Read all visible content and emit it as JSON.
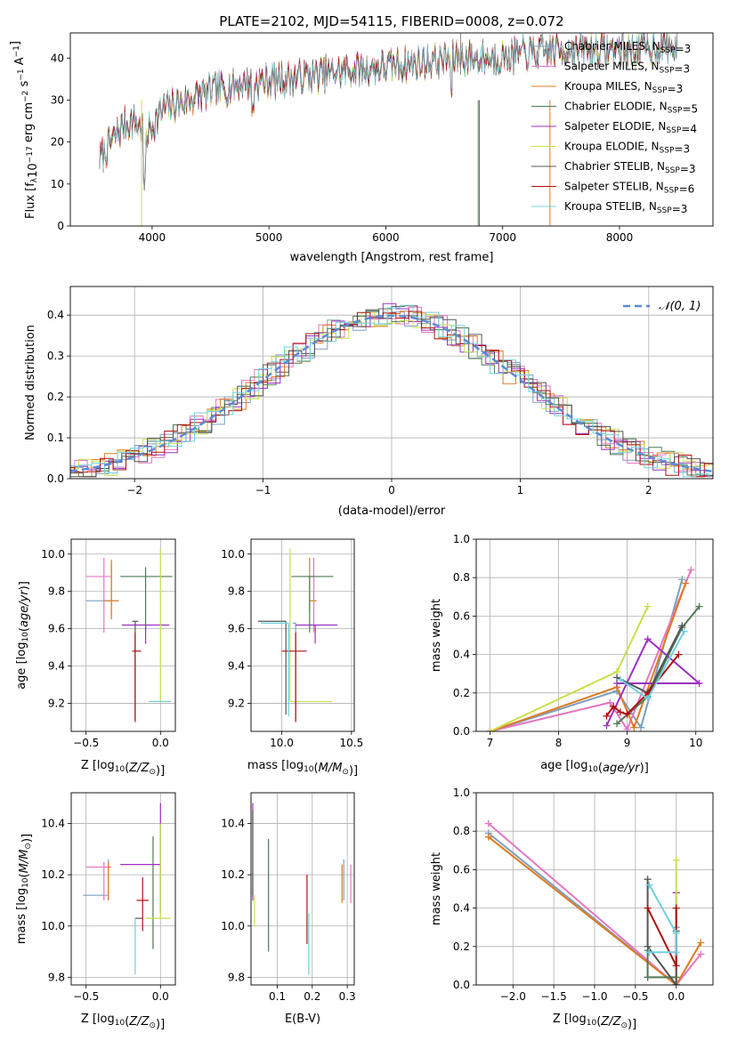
{
  "figure": {
    "title": "PLATE=2102, MJD=54115, FIBERID=0008, z=0.072"
  },
  "models": [
    {
      "name": "Chabrier MILES, N_SSP=3",
      "color": "#7b9fbf"
    },
    {
      "name": "Salpeter MILES, N_SSP=3",
      "color": "#e377c2"
    },
    {
      "name": "Kroupa MILES, N_SSP=3",
      "color": "#e07b20"
    },
    {
      "name": "Chabrier ELODIE, N_SSP=5",
      "color": "#4f7a55"
    },
    {
      "name": "Salpeter ELODIE, N_SSP=4",
      "color": "#9b30c0"
    },
    {
      "name": "Kroupa ELODIE, N_SSP=3",
      "color": "#c8e04a"
    },
    {
      "name": "Chabrier STELIB, N_SSP=3",
      "color": "#555555"
    },
    {
      "name": "Salpeter STELIB, N_SSP=6",
      "color": "#b01010"
    },
    {
      "name": "Kroupa STELIB, N_SSP=3",
      "color": "#6fd0e0"
    }
  ],
  "chart_data": [
    {
      "id": "spectrum",
      "type": "line",
      "xlabel": "wavelength [Angstrom, rest frame]",
      "ylabel": "Flux [f_λ 10^-17 erg cm^-2 s^-1 A^-1]",
      "xlim": [
        3300,
        8800
      ],
      "ylim": [
        0,
        46
      ],
      "xticks": [
        4000,
        5000,
        6000,
        7000,
        8000
      ],
      "yticks": [
        0,
        10,
        20,
        30,
        40
      ],
      "spectrum_anchors": [
        [
          3550,
          16
        ],
        [
          3650,
          20
        ],
        [
          3750,
          24
        ],
        [
          3850,
          25
        ],
        [
          3950,
          22
        ],
        [
          4100,
          28
        ],
        [
          4300,
          30
        ],
        [
          4500,
          32
        ],
        [
          4800,
          34
        ],
        [
          5100,
          35
        ],
        [
          5400,
          36
        ],
        [
          5700,
          37
        ],
        [
          6000,
          38
        ],
        [
          6300,
          39
        ],
        [
          6600,
          40
        ],
        [
          6900,
          40
        ],
        [
          7200,
          41
        ],
        [
          7500,
          42
        ],
        [
          7800,
          42
        ],
        [
          8100,
          42
        ],
        [
          8400,
          43
        ],
        [
          8500,
          42
        ]
      ],
      "legend_loc": "upper right"
    },
    {
      "id": "residuals",
      "type": "histogram",
      "xlabel": "(data-model)/error",
      "ylabel": "Normed distribution",
      "xlim": [
        -2.5,
        2.5
      ],
      "ylim": [
        0,
        0.47
      ],
      "xticks": [
        -2,
        -1,
        0,
        1,
        2
      ],
      "yticks": [
        0.0,
        0.1,
        0.2,
        0.3,
        0.4
      ],
      "grid": true,
      "legend": "𝒩(0, 1)",
      "reference_curve": "normal(0,1)"
    },
    {
      "id": "age-vs-Z",
      "type": "errorbar",
      "xlabel": "Z [log10(Z/Z⊙)]",
      "ylabel": "age [log10(age/yr)]",
      "xlim": [
        -0.6,
        0.1
      ],
      "ylim": [
        9.05,
        10.08
      ],
      "xticks": [
        -0.5,
        0.0
      ],
      "yticks": [
        9.2,
        9.4,
        9.6,
        9.8,
        10.0
      ],
      "grid": true,
      "points": [
        {
          "model": 0,
          "x": -0.33,
          "y": 9.75,
          "xerr": [
            0.17,
            0.05
          ],
          "yerr": [
            0.08,
            0.2
          ]
        },
        {
          "model": 1,
          "x": -0.38,
          "y": 9.88,
          "xerr": [
            0.12,
            0.05
          ],
          "yerr": [
            0.3,
            0.1
          ]
        },
        {
          "model": 2,
          "x": -0.33,
          "y": 9.75,
          "xerr": [
            0.05,
            0.05
          ],
          "yerr": [
            0.1,
            0.22
          ]
        },
        {
          "model": 3,
          "x": -0.1,
          "y": 9.88,
          "xerr": [
            0.17,
            0.18
          ],
          "yerr": [
            0.3,
            0.05
          ]
        },
        {
          "model": 4,
          "x": -0.1,
          "y": 9.62,
          "xerr": [
            0.16,
            0.16
          ],
          "yerr": [
            0.1,
            0.0
          ]
        },
        {
          "model": 5,
          "x": 0.0,
          "y": 9.21,
          "xerr": [
            0.05,
            0.07
          ],
          "yerr": [
            0.0,
            0.82
          ]
        },
        {
          "model": 6,
          "x": -0.17,
          "y": 9.64,
          "xerr": [
            0.02,
            0.02
          ],
          "yerr": [
            0.53,
            0.0
          ]
        },
        {
          "model": 7,
          "x": -0.17,
          "y": 9.48,
          "xerr": [
            0.02,
            0.04
          ],
          "yerr": [
            0.38,
            0.1
          ]
        },
        {
          "model": 8,
          "x": -0.03,
          "y": 9.21,
          "xerr": [
            0.05,
            0.1
          ],
          "yerr": [
            0.0,
            0.0
          ]
        }
      ]
    },
    {
      "id": "age-vs-mass",
      "type": "errorbar",
      "xlabel": "mass [log10(M/M⊙)]",
      "ylabel": "",
      "xlim": [
        9.78,
        10.52
      ],
      "ylim": [
        9.05,
        10.08
      ],
      "xticks": [
        10.0,
        10.5
      ],
      "yticks": [
        9.2,
        9.4,
        9.6,
        9.8,
        10.0
      ],
      "grid": true,
      "points": [
        {
          "model": 0,
          "x": 10.1,
          "y": 9.63,
          "xerr": [
            0.02,
            0.0
          ],
          "yerr": [
            0.52,
            0.0
          ]
        },
        {
          "model": 1,
          "x": 10.23,
          "y": 9.88,
          "xerr": [
            0.05,
            0.0
          ],
          "yerr": [
            0.3,
            0.1
          ]
        },
        {
          "model": 2,
          "x": 10.2,
          "y": 9.75,
          "xerr": [
            0.0,
            0.05
          ],
          "yerr": [
            0.06,
            0.23
          ]
        },
        {
          "model": 3,
          "x": 10.2,
          "y": 9.88,
          "xerr": [
            0.13,
            0.17
          ],
          "yerr": [
            0.3,
            0.0
          ]
        },
        {
          "model": 4,
          "x": 10.24,
          "y": 9.62,
          "xerr": [
            0.14,
            0.16
          ],
          "yerr": [
            0.1,
            0.0
          ]
        },
        {
          "model": 5,
          "x": 10.06,
          "y": 9.21,
          "xerr": [
            0.0,
            0.3
          ],
          "yerr": [
            0.0,
            0.82
          ]
        },
        {
          "model": 6,
          "x": 10.03,
          "y": 9.64,
          "xerr": [
            0.2,
            0.0
          ],
          "yerr": [
            0.5,
            0.0
          ]
        },
        {
          "model": 7,
          "x": 10.1,
          "y": 9.48,
          "xerr": [
            0.1,
            0.08
          ],
          "yerr": [
            0.38,
            0.1
          ]
        },
        {
          "model": 8,
          "x": 10.05,
          "y": 9.63,
          "xerr": [
            0.2,
            0.0
          ],
          "yerr": [
            0.5,
            0.0
          ]
        }
      ]
    },
    {
      "id": "weight-vs-age",
      "type": "line",
      "xlabel": "age [log10(age/yr)]",
      "ylabel": "mass weight",
      "xlim": [
        6.8,
        10.25
      ],
      "ylim": [
        0,
        1
      ],
      "xticks": [
        7,
        8,
        9,
        10
      ],
      "yticks": [
        0.0,
        0.2,
        0.4,
        0.6,
        0.8,
        1.0
      ],
      "grid": true,
      "series": [
        {
          "model": 0,
          "x": [
            7.0,
            8.85,
            9.2,
            9.8
          ],
          "y": [
            0.0,
            0.21,
            0.02,
            0.79
          ]
        },
        {
          "model": 1,
          "x": [
            7.0,
            8.75,
            9.0,
            9.93
          ],
          "y": [
            0.0,
            0.15,
            0.01,
            0.84
          ]
        },
        {
          "model": 2,
          "x": [
            7.0,
            8.85,
            9.1,
            9.85
          ],
          "y": [
            0.0,
            0.23,
            0.02,
            0.77
          ]
        },
        {
          "model": 3,
          "x": [
            8.85,
            9.3,
            9.8,
            10.05
          ],
          "y": [
            0.04,
            0.18,
            0.54,
            0.65
          ]
        },
        {
          "model": 4,
          "x": [
            8.7,
            9.3,
            10.05,
            8.85
          ],
          "y": [
            0.03,
            0.48,
            0.25,
            0.25
          ]
        },
        {
          "model": 5,
          "x": [
            7.0,
            8.85,
            9.3
          ],
          "y": [
            0.0,
            0.31,
            0.65
          ]
        },
        {
          "model": 6,
          "x": [
            8.85,
            9.3,
            9.8
          ],
          "y": [
            0.28,
            0.2,
            0.55
          ]
        },
        {
          "model": 7,
          "x": [
            8.7,
            8.8,
            8.9,
            9.0,
            9.3,
            9.75
          ],
          "y": [
            0.08,
            0.13,
            0.1,
            0.09,
            0.2,
            0.4
          ]
        },
        {
          "model": 8,
          "x": [
            8.9,
            9.3,
            9.83
          ],
          "y": [
            0.27,
            0.17,
            0.52
          ]
        }
      ]
    },
    {
      "id": "mass-vs-Z",
      "type": "errorbar",
      "xlabel": "Z [log10(Z/Z⊙)]",
      "ylabel": "mass [log10(M/M⊙)]",
      "xlim": [
        -0.6,
        0.1
      ],
      "ylim": [
        9.77,
        10.52
      ],
      "xticks": [
        -0.5,
        0.0
      ],
      "yticks": [
        9.8,
        10.0,
        10.2,
        10.4
      ],
      "grid": true,
      "points": [
        {
          "model": 0,
          "x": -0.35,
          "y": 10.12,
          "xerr": [
            0.17,
            0.0
          ],
          "yerr": [
            0.02,
            0.14
          ]
        },
        {
          "model": 1,
          "x": -0.38,
          "y": 10.23,
          "xerr": [
            0.12,
            0.05
          ],
          "yerr": [
            0.13,
            0.02
          ]
        },
        {
          "model": 2,
          "x": -0.35,
          "y": 10.12,
          "xerr": [
            0.0,
            0.0
          ],
          "yerr": [
            0.02,
            0.13
          ]
        },
        {
          "model": 3,
          "x": -0.05,
          "y": 10.03,
          "xerr": [
            0.0,
            0.0
          ],
          "yerr": [
            0.12,
            0.32
          ]
        },
        {
          "model": 4,
          "x": -0.1,
          "y": 10.24,
          "xerr": [
            0.17,
            0.1
          ],
          "yerr": [
            0.0,
            0.0
          ]
        },
        {
          "model": 5,
          "x": -0.05,
          "y": 10.03,
          "xerr": [
            0.05,
            0.12
          ],
          "yerr": [
            0.0,
            0.0
          ]
        },
        {
          "model": 6,
          "x": -0.17,
          "y": 10.03,
          "xerr": [
            0.0,
            0.05
          ],
          "yerr": [
            0.0,
            0.0
          ]
        },
        {
          "model": 7,
          "x": -0.12,
          "y": 10.1,
          "xerr": [
            0.04,
            0.04
          ],
          "yerr": [
            0.12,
            0.09
          ]
        },
        {
          "model": 8,
          "x": -0.17,
          "y": 10.03,
          "xerr": [
            0.0,
            0.0
          ],
          "yerr": [
            0.22,
            0.0
          ]
        }
      ],
      "verticals": [
        {
          "model": 4,
          "x": 0.0,
          "y0": 10.05,
          "y1": 10.48
        },
        {
          "model": 5,
          "x": 0.0,
          "y0": 10.03,
          "y1": 10.4
        }
      ]
    },
    {
      "id": "mass-vs-EBV",
      "type": "errorbar",
      "xlabel": "E(B-V)",
      "ylabel": "",
      "xlim": [
        0.025,
        0.32
      ],
      "ylim": [
        9.77,
        10.52
      ],
      "xticks": [
        0.1,
        0.2,
        0.3
      ],
      "yticks": [
        9.8,
        10.0,
        10.2,
        10.4
      ],
      "grid": true,
      "points": [
        {
          "model": 0,
          "x": 0.29,
          "y": 10.18,
          "xerr": [
            0.0,
            0.0
          ],
          "yerr": [
            0.08,
            0.08
          ]
        },
        {
          "model": 1,
          "x": 0.31,
          "y": 10.16,
          "xerr": [
            0.0,
            0.0
          ],
          "yerr": [
            0.07,
            0.08
          ]
        },
        {
          "model": 2,
          "x": 0.285,
          "y": 10.16,
          "xerr": [
            0.0,
            0.0
          ],
          "yerr": [
            0.07,
            0.08
          ]
        },
        {
          "model": 3,
          "x": 0.075,
          "y": 10.1,
          "xerr": [
            0.0,
            0.0
          ],
          "yerr": [
            0.2,
            0.24
          ]
        },
        {
          "model": 4,
          "x": 0.03,
          "y": 10.3,
          "xerr": [
            0.0,
            0.0
          ],
          "yerr": [
            0.2,
            0.18
          ]
        },
        {
          "model": 5,
          "x": 0.035,
          "y": 10.05,
          "xerr": [
            0.0,
            0.0
          ],
          "yerr": [
            0.05,
            0.07
          ]
        },
        {
          "model": 6,
          "x": 0.03,
          "y": 10.3,
          "xerr": [
            0.0,
            0.0
          ],
          "yerr": [
            0.18,
            0.15
          ]
        },
        {
          "model": 7,
          "x": 0.185,
          "y": 10.08,
          "xerr": [
            0.0,
            0.0
          ],
          "yerr": [
            0.15,
            0.12
          ]
        },
        {
          "model": 8,
          "x": 0.19,
          "y": 9.97,
          "xerr": [
            0.0,
            0.0
          ],
          "yerr": [
            0.16,
            0.08
          ]
        }
      ]
    },
    {
      "id": "weight-vs-Z",
      "type": "line",
      "xlabel": "Z [log10(Z/Z⊙)]",
      "ylabel": "mass weight",
      "xlim": [
        -2.45,
        0.45
      ],
      "ylim": [
        0,
        1
      ],
      "xticks": [
        -2.0,
        -1.5,
        -1.0,
        -0.5,
        0.0
      ],
      "yticks": [
        0.0,
        0.2,
        0.4,
        0.6,
        0.8,
        1.0
      ],
      "grid": true,
      "series": [
        {
          "model": 0,
          "x": [
            -2.3,
            0.0,
            0.0
          ],
          "y": [
            0.79,
            0.0,
            0.3
          ]
        },
        {
          "model": 1,
          "x": [
            -2.3,
            0.0,
            0.3
          ],
          "y": [
            0.84,
            0.0,
            0.16
          ]
        },
        {
          "model": 2,
          "x": [
            -2.3,
            0.0,
            0.3
          ],
          "y": [
            0.77,
            0.0,
            0.22
          ]
        },
        {
          "model": 3,
          "x": [
            -0.35,
            0.0,
            -0.35,
            -0.35
          ],
          "y": [
            0.04,
            0.04,
            0.04,
            0.18
          ]
        },
        {
          "model": 4,
          "x": [
            0.0,
            0.0
          ],
          "y": [
            0.0,
            0.48
          ]
        },
        {
          "model": 5,
          "x": [
            0.0,
            0.0
          ],
          "y": [
            0.0,
            0.65
          ]
        },
        {
          "model": 6,
          "x": [
            -0.35,
            -0.35,
            0.0,
            0.0
          ],
          "y": [
            0.55,
            0.2,
            0.0,
            0.28
          ]
        },
        {
          "model": 7,
          "x": [
            -0.35,
            0.0,
            0.0
          ],
          "y": [
            0.4,
            0.1,
            0.4
          ]
        },
        {
          "model": 8,
          "x": [
            -0.33,
            0.0,
            0.0,
            -0.33
          ],
          "y": [
            0.52,
            0.27,
            0.17,
            0.17
          ]
        }
      ]
    }
  ]
}
